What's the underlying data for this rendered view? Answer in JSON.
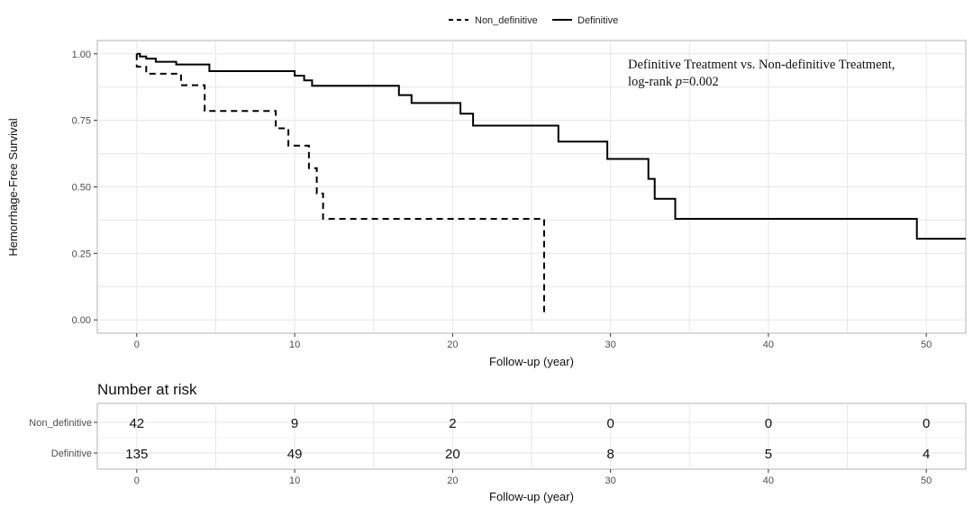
{
  "chart_data": [
    {
      "type": "line",
      "subtype": "kaplan-meier",
      "xlabel": "Follow-up (year)",
      "ylabel": "Hemorrhage-Free Survival",
      "xlim": [
        -2.5,
        52.5
      ],
      "ylim": [
        -0.05,
        1.05
      ],
      "x_ticks": [
        "0",
        "10",
        "20",
        "30",
        "40",
        "50"
      ],
      "y_ticks": [
        "0.00",
        "0.25",
        "0.50",
        "0.75",
        "1.00"
      ],
      "grid": true,
      "legend_position": "top",
      "legend": [
        {
          "name": "Non_definitive",
          "style": "dashed"
        },
        {
          "name": "Definitive",
          "style": "solid"
        }
      ],
      "annotation": {
        "line1": "Definitive Treatment vs. Non-definitive Treatment,",
        "line2_prefix": "log-rank ",
        "line2_italic": "p",
        "line2_suffix": "=0.002"
      },
      "series": [
        {
          "name": "Non_definitive",
          "style": "dashed",
          "points": [
            [
              0,
              1.0
            ],
            [
              0,
              0.952
            ],
            [
              0.6,
              0.952
            ],
            [
              0.6,
              0.925
            ],
            [
              2.8,
              0.925
            ],
            [
              2.8,
              0.882
            ],
            [
              4.3,
              0.882
            ],
            [
              4.3,
              0.785
            ],
            [
              8.8,
              0.785
            ],
            [
              8.8,
              0.72
            ],
            [
              9.6,
              0.72
            ],
            [
              9.6,
              0.655
            ],
            [
              10.9,
              0.655
            ],
            [
              10.9,
              0.57
            ],
            [
              11.4,
              0.57
            ],
            [
              11.4,
              0.475
            ],
            [
              11.8,
              0.475
            ],
            [
              11.8,
              0.38
            ],
            [
              25.8,
              0.38
            ],
            [
              25.8,
              0.02
            ]
          ]
        },
        {
          "name": "Definitive",
          "style": "solid",
          "points": [
            [
              0,
              1.0
            ],
            [
              0.2,
              1.0
            ],
            [
              0.2,
              0.99
            ],
            [
              0.6,
              0.99
            ],
            [
              0.6,
              0.982
            ],
            [
              1.2,
              0.982
            ],
            [
              1.2,
              0.97
            ],
            [
              2.5,
              0.97
            ],
            [
              2.5,
              0.96
            ],
            [
              4.6,
              0.96
            ],
            [
              4.6,
              0.935
            ],
            [
              10.0,
              0.935
            ],
            [
              10.0,
              0.918
            ],
            [
              10.6,
              0.918
            ],
            [
              10.6,
              0.9
            ],
            [
              11.1,
              0.9
            ],
            [
              11.1,
              0.88
            ],
            [
              16.6,
              0.88
            ],
            [
              16.6,
              0.845
            ],
            [
              17.4,
              0.845
            ],
            [
              17.4,
              0.815
            ],
            [
              20.5,
              0.815
            ],
            [
              20.5,
              0.775
            ],
            [
              21.3,
              0.775
            ],
            [
              21.3,
              0.73
            ],
            [
              26.7,
              0.73
            ],
            [
              26.7,
              0.67
            ],
            [
              29.8,
              0.67
            ],
            [
              29.8,
              0.605
            ],
            [
              32.4,
              0.605
            ],
            [
              32.4,
              0.53
            ],
            [
              32.8,
              0.53
            ],
            [
              32.8,
              0.455
            ],
            [
              34.1,
              0.455
            ],
            [
              34.1,
              0.38
            ],
            [
              49.4,
              0.38
            ],
            [
              49.4,
              0.305
            ],
            [
              52.5,
              0.305
            ]
          ]
        }
      ]
    },
    {
      "type": "table",
      "title": "Number at risk",
      "xlabel": "Follow-up (year)",
      "x_ticks": [
        "0",
        "10",
        "20",
        "30",
        "40",
        "50"
      ],
      "time_points": [
        0,
        10,
        20,
        30,
        40,
        50
      ],
      "rows": [
        {
          "label": "Non_definitive",
          "values": [
            "42",
            "9",
            "2",
            "0",
            "0",
            "0"
          ]
        },
        {
          "label": "Definitive",
          "values": [
            "135",
            "49",
            "20",
            "8",
            "5",
            "4"
          ]
        }
      ]
    }
  ]
}
